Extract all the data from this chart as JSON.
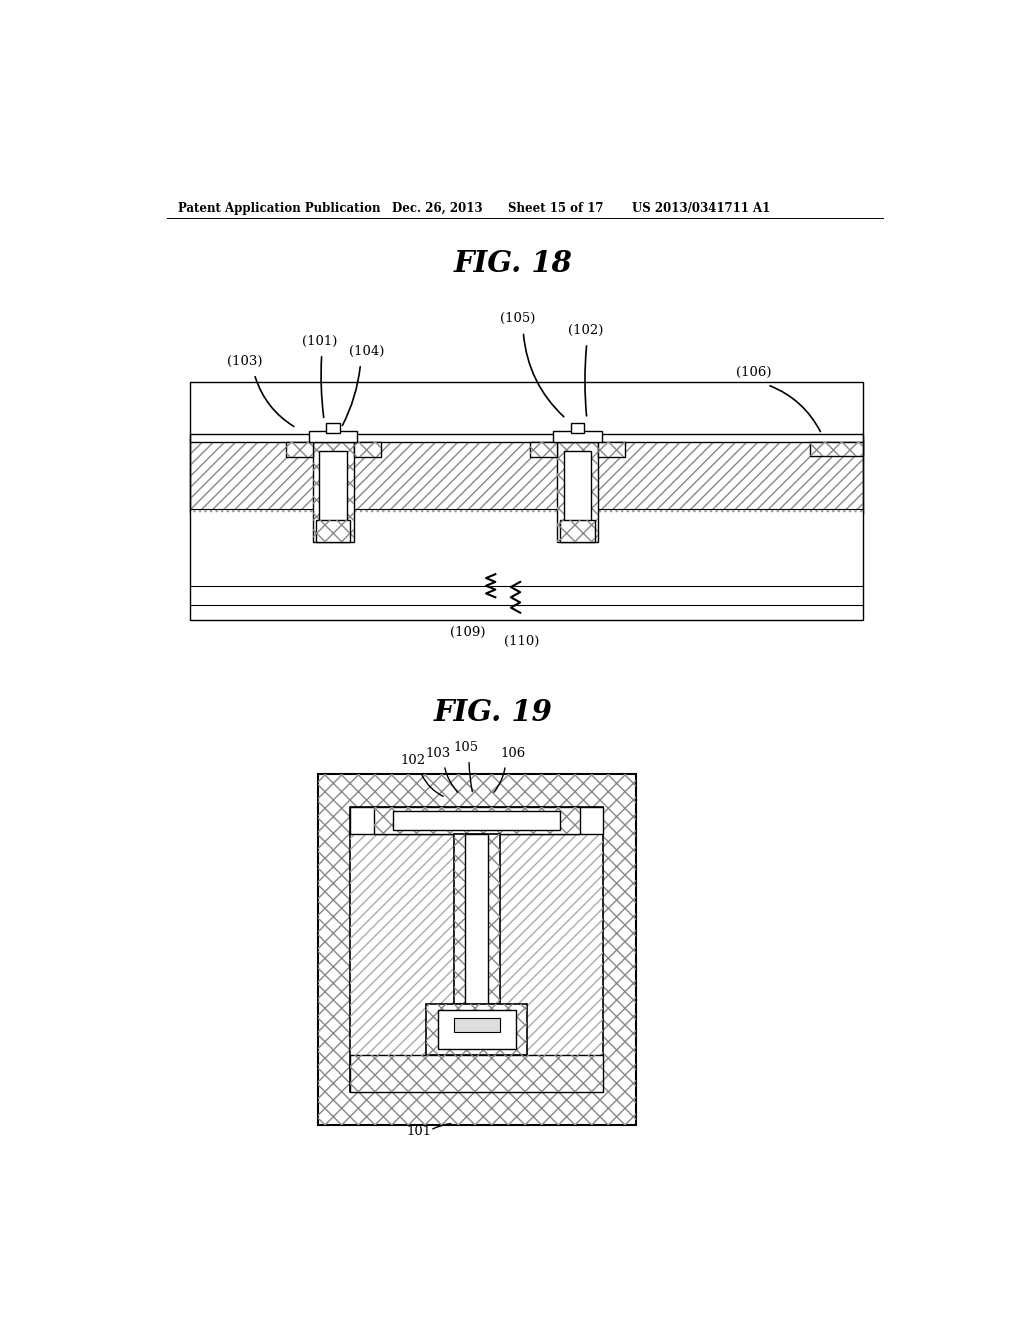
{
  "bg_color": "#ffffff",
  "header_text": "Patent Application Publication",
  "header_date": "Dec. 26, 2013",
  "header_sheet": "Sheet 15 of 17",
  "header_patent": "US 2013/0341711 A1",
  "fig18_title": "FIG. 18",
  "fig19_title": "FIG. 19",
  "line_color": "#000000",
  "hatch_diag_color": "#666666",
  "hatch_cross_color": "#777777"
}
